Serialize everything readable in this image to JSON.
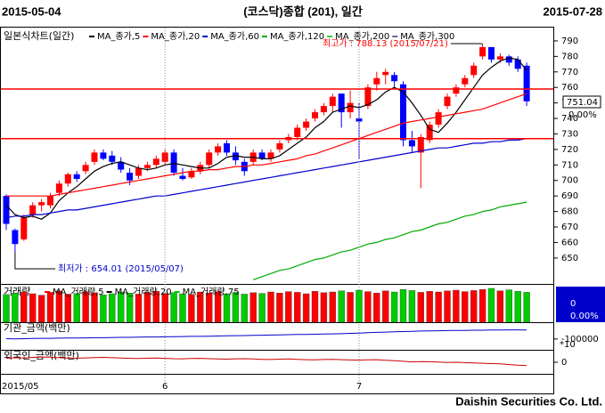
{
  "header": {
    "start_date": "2015-05-04",
    "title": "(코스닥)종합 (201), 일간",
    "end_date": "2015-07-28"
  },
  "chart_data": [
    {
      "type": "candlestick",
      "label": "일본식차트(일간)",
      "categories": [
        "2015/05",
        null,
        null,
        null,
        null,
        null,
        null,
        null,
        null,
        null,
        null,
        null,
        null,
        null,
        null,
        null,
        null,
        null,
        "6",
        null,
        null,
        null,
        null,
        null,
        null,
        null,
        null,
        null,
        null,
        null,
        null,
        null,
        null,
        null,
        null,
        null,
        null,
        null,
        null,
        null,
        "7",
        null,
        null,
        null,
        null,
        null,
        null,
        null,
        null,
        null,
        null,
        null,
        null,
        null,
        null,
        null,
        null,
        null,
        null,
        null
      ],
      "open": [
        690,
        668,
        662,
        678,
        684,
        684,
        692,
        698,
        704,
        706,
        712,
        718,
        716,
        712,
        705,
        703,
        708,
        710,
        712,
        718,
        703,
        702,
        706,
        710,
        718,
        724,
        718,
        712,
        712,
        718,
        714,
        720,
        726,
        728,
        734,
        740,
        744,
        748,
        756,
        744,
        740,
        748,
        762,
        768,
        768,
        762,
        726,
        718,
        726,
        736,
        748,
        756,
        762,
        768,
        780,
        786,
        778,
        780,
        778,
        774
      ],
      "high": [
        691,
        669,
        678,
        686,
        688,
        692,
        700,
        705,
        706,
        712,
        720,
        720,
        719,
        715,
        708,
        710,
        712,
        716,
        720,
        720,
        708,
        708,
        712,
        720,
        724,
        726,
        722,
        714,
        720,
        720,
        720,
        726,
        730,
        736,
        740,
        746,
        750,
        756,
        756,
        758,
        750,
        762,
        770,
        772,
        770,
        764,
        732,
        730,
        738,
        746,
        756,
        762,
        768,
        776,
        788.13,
        786,
        782,
        781,
        780,
        776
      ],
      "low": [
        668,
        654.01,
        661,
        676,
        680,
        682,
        690,
        696,
        699,
        704,
        710,
        713,
        710,
        705,
        697,
        701,
        706,
        708,
        710,
        703,
        700,
        701,
        704,
        708,
        716,
        716,
        710,
        703,
        710,
        713,
        712,
        718,
        724,
        726,
        732,
        738,
        742,
        744,
        734,
        740,
        714,
        746,
        758,
        762,
        760,
        722,
        718,
        695,
        724,
        734,
        746,
        754,
        760,
        766,
        778,
        776,
        776,
        774,
        770,
        748
      ],
      "close": [
        672,
        659,
        676,
        684,
        686,
        690,
        698,
        704,
        701,
        710,
        718,
        714,
        712,
        707,
        700,
        708,
        710,
        714,
        718,
        705,
        701,
        706,
        710,
        718,
        722,
        718,
        713,
        706,
        718,
        714,
        718,
        724,
        728,
        734,
        738,
        744,
        748,
        754,
        744,
        750,
        738,
        760,
        766,
        770,
        764,
        726,
        722,
        728,
        736,
        744,
        754,
        760,
        766,
        774,
        786,
        778,
        780,
        776,
        772,
        751.04
      ],
      "up_color": "#ff0000",
      "down_color": "#0000ff",
      "series": [
        {
          "name": "MA_종가,5",
          "color": "#000000",
          "values": [
            684,
            678,
            676,
            677,
            675,
            679,
            687,
            692,
            696,
            701,
            706,
            709,
            711,
            712,
            710,
            708,
            707,
            708,
            710,
            711,
            710,
            709,
            708,
            708,
            711,
            715,
            716,
            715,
            715,
            714,
            714,
            716,
            720,
            724,
            728,
            734,
            738,
            744,
            746,
            748,
            747,
            749,
            752,
            757,
            760,
            757,
            750,
            742,
            733,
            731,
            737,
            744,
            752,
            760,
            768,
            773,
            777,
            779,
            778,
            771
          ]
        },
        {
          "name": "MA_종가,20",
          "color": "#ff0000",
          "values": [
            690,
            690,
            690,
            690,
            690,
            690,
            691,
            692,
            693,
            694,
            695,
            696,
            697,
            698,
            699,
            700,
            701,
            702,
            703,
            704,
            705,
            706,
            706,
            707,
            707,
            708,
            709,
            709,
            710,
            710,
            711,
            712,
            713,
            714,
            716,
            717,
            719,
            721,
            723,
            725,
            727,
            729,
            731,
            733,
            735,
            737,
            738,
            739,
            740,
            741,
            742,
            743,
            744,
            745,
            746,
            748,
            750,
            752,
            754,
            756
          ]
        },
        {
          "name": "MA_종가,60",
          "color": "#0000cc",
          "values": [
            676,
            677,
            677,
            678,
            678,
            679,
            680,
            681,
            681,
            682,
            683,
            684,
            685,
            686,
            687,
            688,
            689,
            690,
            690,
            691,
            692,
            693,
            694,
            695,
            696,
            697,
            698,
            699,
            700,
            701,
            702,
            703,
            704,
            705,
            706,
            707,
            708,
            709,
            710,
            711,
            712,
            713,
            714,
            715,
            716,
            717,
            718,
            719,
            720,
            721,
            721,
            722,
            723,
            724,
            724,
            725,
            725,
            726,
            726,
            727
          ]
        },
        {
          "name": "MA_종가,120",
          "color": "#00aa00",
          "values": [
            null,
            null,
            null,
            null,
            null,
            null,
            null,
            null,
            null,
            null,
            null,
            null,
            null,
            null,
            null,
            null,
            null,
            null,
            null,
            null,
            null,
            null,
            null,
            null,
            null,
            null,
            null,
            null,
            636,
            638,
            640,
            642,
            643,
            645,
            647,
            649,
            650,
            652,
            654,
            655,
            657,
            659,
            660,
            662,
            663,
            665,
            667,
            668,
            670,
            672,
            673,
            675,
            677,
            678,
            680,
            681,
            683,
            684,
            685,
            686
          ]
        }
      ],
      "legend_only": [
        {
          "name": "MA_종가,200",
          "color": "#33cc33"
        },
        {
          "name": "MA_종가,300",
          "color": "#6666aa"
        }
      ],
      "ylim": [
        635,
        798
      ],
      "yticks": [
        650,
        660,
        670,
        680,
        690,
        700,
        710,
        720,
        730,
        740,
        750,
        760,
        770,
        780,
        790
      ],
      "hlines": {
        "values": [
          759,
          727
        ],
        "color": "#ff0000"
      },
      "high_annotation": "최고가 : 788.13 (2015/07/21)",
      "low_annotation": "최저가 : 654.01 (2015/05/07)",
      "change": {
        "value": 0,
        "label": "0.00%"
      }
    },
    {
      "type": "bar",
      "title": "거래량",
      "legend": [
        {
          "name": "MA_거래량,5",
          "color": "#ff0000"
        },
        {
          "name": "MA_거래량,20",
          "color": "#000000"
        },
        {
          "name": "MA_거래량,75",
          "color": "#00cc00"
        }
      ],
      "values": [
        78,
        82,
        85,
        80,
        76,
        84,
        88,
        79,
        81,
        86,
        83,
        77,
        80,
        85,
        82,
        79,
        84,
        87,
        81,
        83,
        80,
        78,
        85,
        82,
        86,
        80,
        84,
        79,
        83,
        81,
        85,
        82,
        86,
        84,
        80,
        87,
        83,
        85,
        88,
        84,
        90,
        86,
        82,
        88,
        85,
        92,
        89,
        84,
        87,
        85,
        88,
        90,
        86,
        89,
        92,
        95,
        88,
        91,
        87,
        84
      ],
      "up_color": "#ff0000",
      "down_color": "#00cc00",
      "ylim": [
        0,
        100
      ],
      "readout": 0,
      "readout_change": {
        "value": 0,
        "label": "0.00%"
      }
    },
    {
      "type": "line",
      "title": "기관_금액(백만)",
      "color": "#0000cc",
      "values": [
        -99000,
        -99500,
        -99000,
        -98500,
        -98000,
        -98000,
        -97500,
        -97000,
        -97000,
        -96500,
        -96000,
        -96000,
        -95500,
        -95000,
        -95000,
        -94500,
        -94000,
        -94000,
        -93500,
        -93000,
        -92500,
        -92000,
        -92000,
        -91500,
        -91000,
        -90500,
        -90000,
        -89500,
        -89000,
        -88500,
        -88000,
        -87500,
        -87000,
        -86500,
        -86000,
        -85500,
        -85000,
        -84500,
        -84000,
        -83000,
        -82000,
        -81000,
        -80000,
        -79000,
        -78000,
        -77500,
        -77000,
        -76000,
        -75500,
        -75000,
        -74500,
        -74000,
        -74000,
        -73500,
        -73500,
        -73000,
        -73000,
        -72500,
        -72500,
        -73000
      ],
      "ylim": [
        -130000,
        -60000
      ],
      "yticks": [
        -100000
      ],
      "scale_note": "*10"
    },
    {
      "type": "line",
      "title": "외국인_금액(백만)",
      "color": "#cc0000",
      "values": [
        12000,
        14000,
        13000,
        15000,
        16000,
        15500,
        14000,
        13000,
        12500,
        13500,
        14500,
        15000,
        14000,
        13000,
        12000,
        11500,
        12500,
        13000,
        12000,
        11000,
        10500,
        11500,
        12000,
        11000,
        10000,
        9500,
        10500,
        11000,
        10000,
        9000,
        8500,
        9500,
        10000,
        9000,
        8000,
        7500,
        8500,
        9000,
        8000,
        7000,
        6500,
        7500,
        8000,
        6000,
        5000,
        3000,
        1000,
        2000,
        1500,
        500,
        -500,
        0,
        -1000,
        -2000,
        -3000,
        -4000,
        -5000,
        -7000,
        -9000,
        -10000
      ],
      "ylim": [
        -30000,
        30000
      ],
      "yticks": [
        0
      ]
    }
  ],
  "footer": "Daishin Securities Co. Ltd."
}
